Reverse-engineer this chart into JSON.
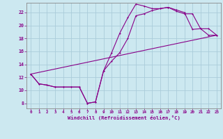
{
  "title": "",
  "xlabel": "Windchill (Refroidissement éolien,°C)",
  "ylabel": "",
  "bg_color": "#cce8f0",
  "grid_color": "#aaccda",
  "line_color": "#880088",
  "spine_color": "#888888",
  "xlim": [
    -0.5,
    23.5
  ],
  "ylim": [
    7.2,
    23.5
  ],
  "xticks": [
    0,
    1,
    2,
    3,
    4,
    5,
    6,
    7,
    8,
    9,
    10,
    11,
    12,
    13,
    14,
    15,
    16,
    17,
    18,
    19,
    20,
    21,
    22,
    23
  ],
  "yticks": [
    8,
    10,
    12,
    14,
    16,
    18,
    20,
    22
  ],
  "line1_x": [
    0,
    1,
    2,
    3,
    4,
    5,
    6,
    7,
    8,
    9,
    10,
    11,
    12,
    13,
    14,
    15,
    16,
    17,
    18,
    19,
    20,
    21,
    22,
    23
  ],
  "line1_y": [
    12.5,
    11.0,
    10.8,
    10.5,
    10.5,
    10.5,
    10.5,
    8.0,
    8.2,
    13.0,
    15.8,
    18.8,
    21.2,
    23.3,
    23.0,
    22.6,
    22.6,
    22.8,
    22.4,
    22.0,
    19.4,
    19.5,
    18.5,
    18.5
  ],
  "line2_x": [
    0,
    1,
    2,
    3,
    4,
    5,
    6,
    7,
    8,
    9,
    10,
    11,
    12,
    13,
    14,
    15,
    16,
    17,
    18,
    19,
    20,
    21,
    22,
    23
  ],
  "line2_y": [
    12.5,
    11.0,
    10.8,
    10.5,
    10.5,
    10.5,
    10.5,
    8.0,
    8.2,
    13.0,
    14.5,
    15.8,
    18.0,
    21.5,
    21.8,
    22.3,
    22.6,
    22.8,
    22.2,
    21.8,
    21.8,
    19.5,
    19.5,
    18.5
  ],
  "line3_x": [
    0,
    23
  ],
  "line3_y": [
    12.5,
    18.5
  ]
}
